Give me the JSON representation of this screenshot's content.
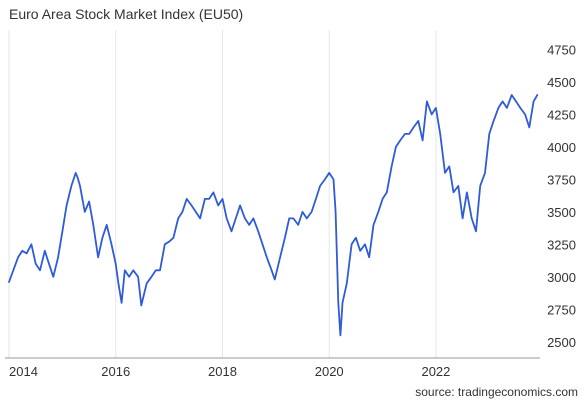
{
  "title": "Euro Area Stock Market Index (EU50)",
  "source": "source: tradingeconomics.com",
  "chart_data": {
    "type": "line",
    "title": "Euro Area Stock Market Index (EU50)",
    "xlabel": "",
    "ylabel": "",
    "x_ticks": [
      "2014",
      "2016",
      "2018",
      "2020",
      "2022"
    ],
    "y_ticks": [
      2500,
      2750,
      3000,
      3250,
      3500,
      3750,
      4000,
      4250,
      4500,
      4750
    ],
    "xlim": [
      2014.0,
      2023.95
    ],
    "ylim": [
      2375,
      4900
    ],
    "grid": "vertical",
    "legend": "none",
    "line_color": "#2f5bd9",
    "series": [
      {
        "x": [
          2014.0,
          2014.08,
          2014.17,
          2014.25,
          2014.33,
          2014.42,
          2014.5,
          2014.58,
          2014.67,
          2014.75,
          2014.83,
          2014.92,
          2015.0,
          2015.08,
          2015.17,
          2015.25,
          2015.29,
          2015.33,
          2015.42,
          2015.5,
          2015.58,
          2015.67,
          2015.75,
          2015.83,
          2015.92,
          2016.0,
          2016.05,
          2016.11,
          2016.17,
          2016.25,
          2016.33,
          2016.42,
          2016.48,
          2016.58,
          2016.67,
          2016.75,
          2016.83,
          2016.92,
          2017.0,
          2017.08,
          2017.17,
          2017.25,
          2017.33,
          2017.42,
          2017.5,
          2017.58,
          2017.67,
          2017.75,
          2017.83,
          2017.92,
          2018.0,
          2018.08,
          2018.17,
          2018.25,
          2018.33,
          2018.42,
          2018.5,
          2018.58,
          2018.67,
          2018.75,
          2018.83,
          2018.92,
          2018.98,
          2019.08,
          2019.17,
          2019.25,
          2019.33,
          2019.42,
          2019.5,
          2019.58,
          2019.67,
          2019.75,
          2019.83,
          2019.92,
          2020.0,
          2020.08,
          2020.12,
          2020.17,
          2020.21,
          2020.25,
          2020.33,
          2020.42,
          2020.5,
          2020.58,
          2020.67,
          2020.75,
          2020.83,
          2020.92,
          2021.0,
          2021.08,
          2021.17,
          2021.25,
          2021.33,
          2021.42,
          2021.5,
          2021.58,
          2021.67,
          2021.75,
          2021.83,
          2021.92,
          2022.0,
          2022.08,
          2022.17,
          2022.25,
          2022.33,
          2022.42,
          2022.5,
          2022.58,
          2022.67,
          2022.75,
          2022.83,
          2022.92,
          2023.0,
          2023.08,
          2023.17,
          2023.25,
          2023.33,
          2023.42,
          2023.5,
          2023.58,
          2023.67,
          2023.75,
          2023.83,
          2023.9
        ],
        "values": [
          2960,
          3050,
          3150,
          3200,
          3180,
          3250,
          3100,
          3050,
          3200,
          3100,
          3000,
          3150,
          3350,
          3550,
          3700,
          3800,
          3760,
          3700,
          3500,
          3580,
          3400,
          3150,
          3300,
          3400,
          3250,
          3100,
          2950,
          2800,
          3050,
          3000,
          3050,
          3000,
          2780,
          2950,
          3000,
          3050,
          3050,
          3250,
          3270,
          3300,
          3450,
          3500,
          3600,
          3550,
          3500,
          3450,
          3600,
          3600,
          3650,
          3550,
          3600,
          3450,
          3350,
          3450,
          3550,
          3450,
          3400,
          3450,
          3350,
          3250,
          3150,
          3050,
          2980,
          3150,
          3300,
          3450,
          3450,
          3400,
          3500,
          3450,
          3500,
          3600,
          3700,
          3750,
          3800,
          3750,
          3500,
          2800,
          2550,
          2800,
          2950,
          3250,
          3300,
          3200,
          3250,
          3150,
          3400,
          3500,
          3600,
          3650,
          3850,
          4000,
          4050,
          4100,
          4100,
          4150,
          4200,
          4050,
          4350,
          4250,
          4300,
          4100,
          3800,
          3850,
          3650,
          3700,
          3450,
          3650,
          3450,
          3350,
          3700,
          3800,
          4100,
          4200,
          4300,
          4350,
          4300,
          4400,
          4350,
          4300,
          4250,
          4150,
          4350,
          4400
        ]
      }
    ]
  }
}
